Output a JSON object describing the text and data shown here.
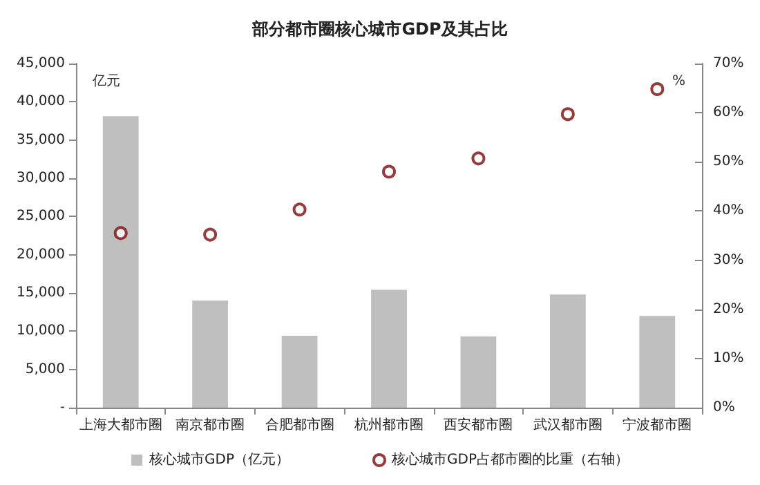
{
  "chart_data": {
    "type": "bar",
    "title": "部分都市圈核心城市GDP及其占比",
    "ylabel": "亿元",
    "y2label": "%",
    "categories": [
      "上海大都市圈",
      "南京都市圈",
      "合肥都市圈",
      "杭州都市圈",
      "西安都市圈",
      "武汉都市圈",
      "宁波都市圈"
    ],
    "series": [
      {
        "name": "核心城市GDP（亿元）",
        "color": "#bfbfbf",
        "values": [
          38100,
          14000,
          9400,
          15400,
          9300,
          14800,
          12000
        ]
      },
      {
        "name": "核心城市GDP占都市圈的比重（右轴）",
        "type": "scatter",
        "axis": "y2",
        "marker": "circle",
        "color": "#7b0c0c",
        "values": [
          35.5,
          35.2,
          40.3,
          48.0,
          50.7,
          59.7,
          64.8
        ]
      }
    ],
    "ylim": [
      0,
      45000
    ],
    "yticks": [
      {
        "value": 0,
        "label": "-"
      },
      {
        "value": 5000,
        "label": "5,000"
      },
      {
        "value": 10000,
        "label": "10,000"
      },
      {
        "value": 15000,
        "label": "15,000"
      },
      {
        "value": 20000,
        "label": "20,000"
      },
      {
        "value": 25000,
        "label": "25,000"
      },
      {
        "value": 30000,
        "label": "30,000"
      },
      {
        "value": 35000,
        "label": "35,000"
      },
      {
        "value": 40000,
        "label": "40,000"
      },
      {
        "value": 45000,
        "label": "45,000"
      }
    ],
    "y2lim": [
      0,
      70
    ],
    "y2ticks": [
      {
        "value": 0,
        "label": "0%"
      },
      {
        "value": 10,
        "label": "10%"
      },
      {
        "value": 20,
        "label": "20%"
      },
      {
        "value": 30,
        "label": "30%"
      },
      {
        "value": 40,
        "label": "40%"
      },
      {
        "value": 50,
        "label": "50%"
      },
      {
        "value": 60,
        "label": "60%"
      },
      {
        "value": 70,
        "label": "70%"
      }
    ],
    "grid": false,
    "legend": "bottom"
  }
}
